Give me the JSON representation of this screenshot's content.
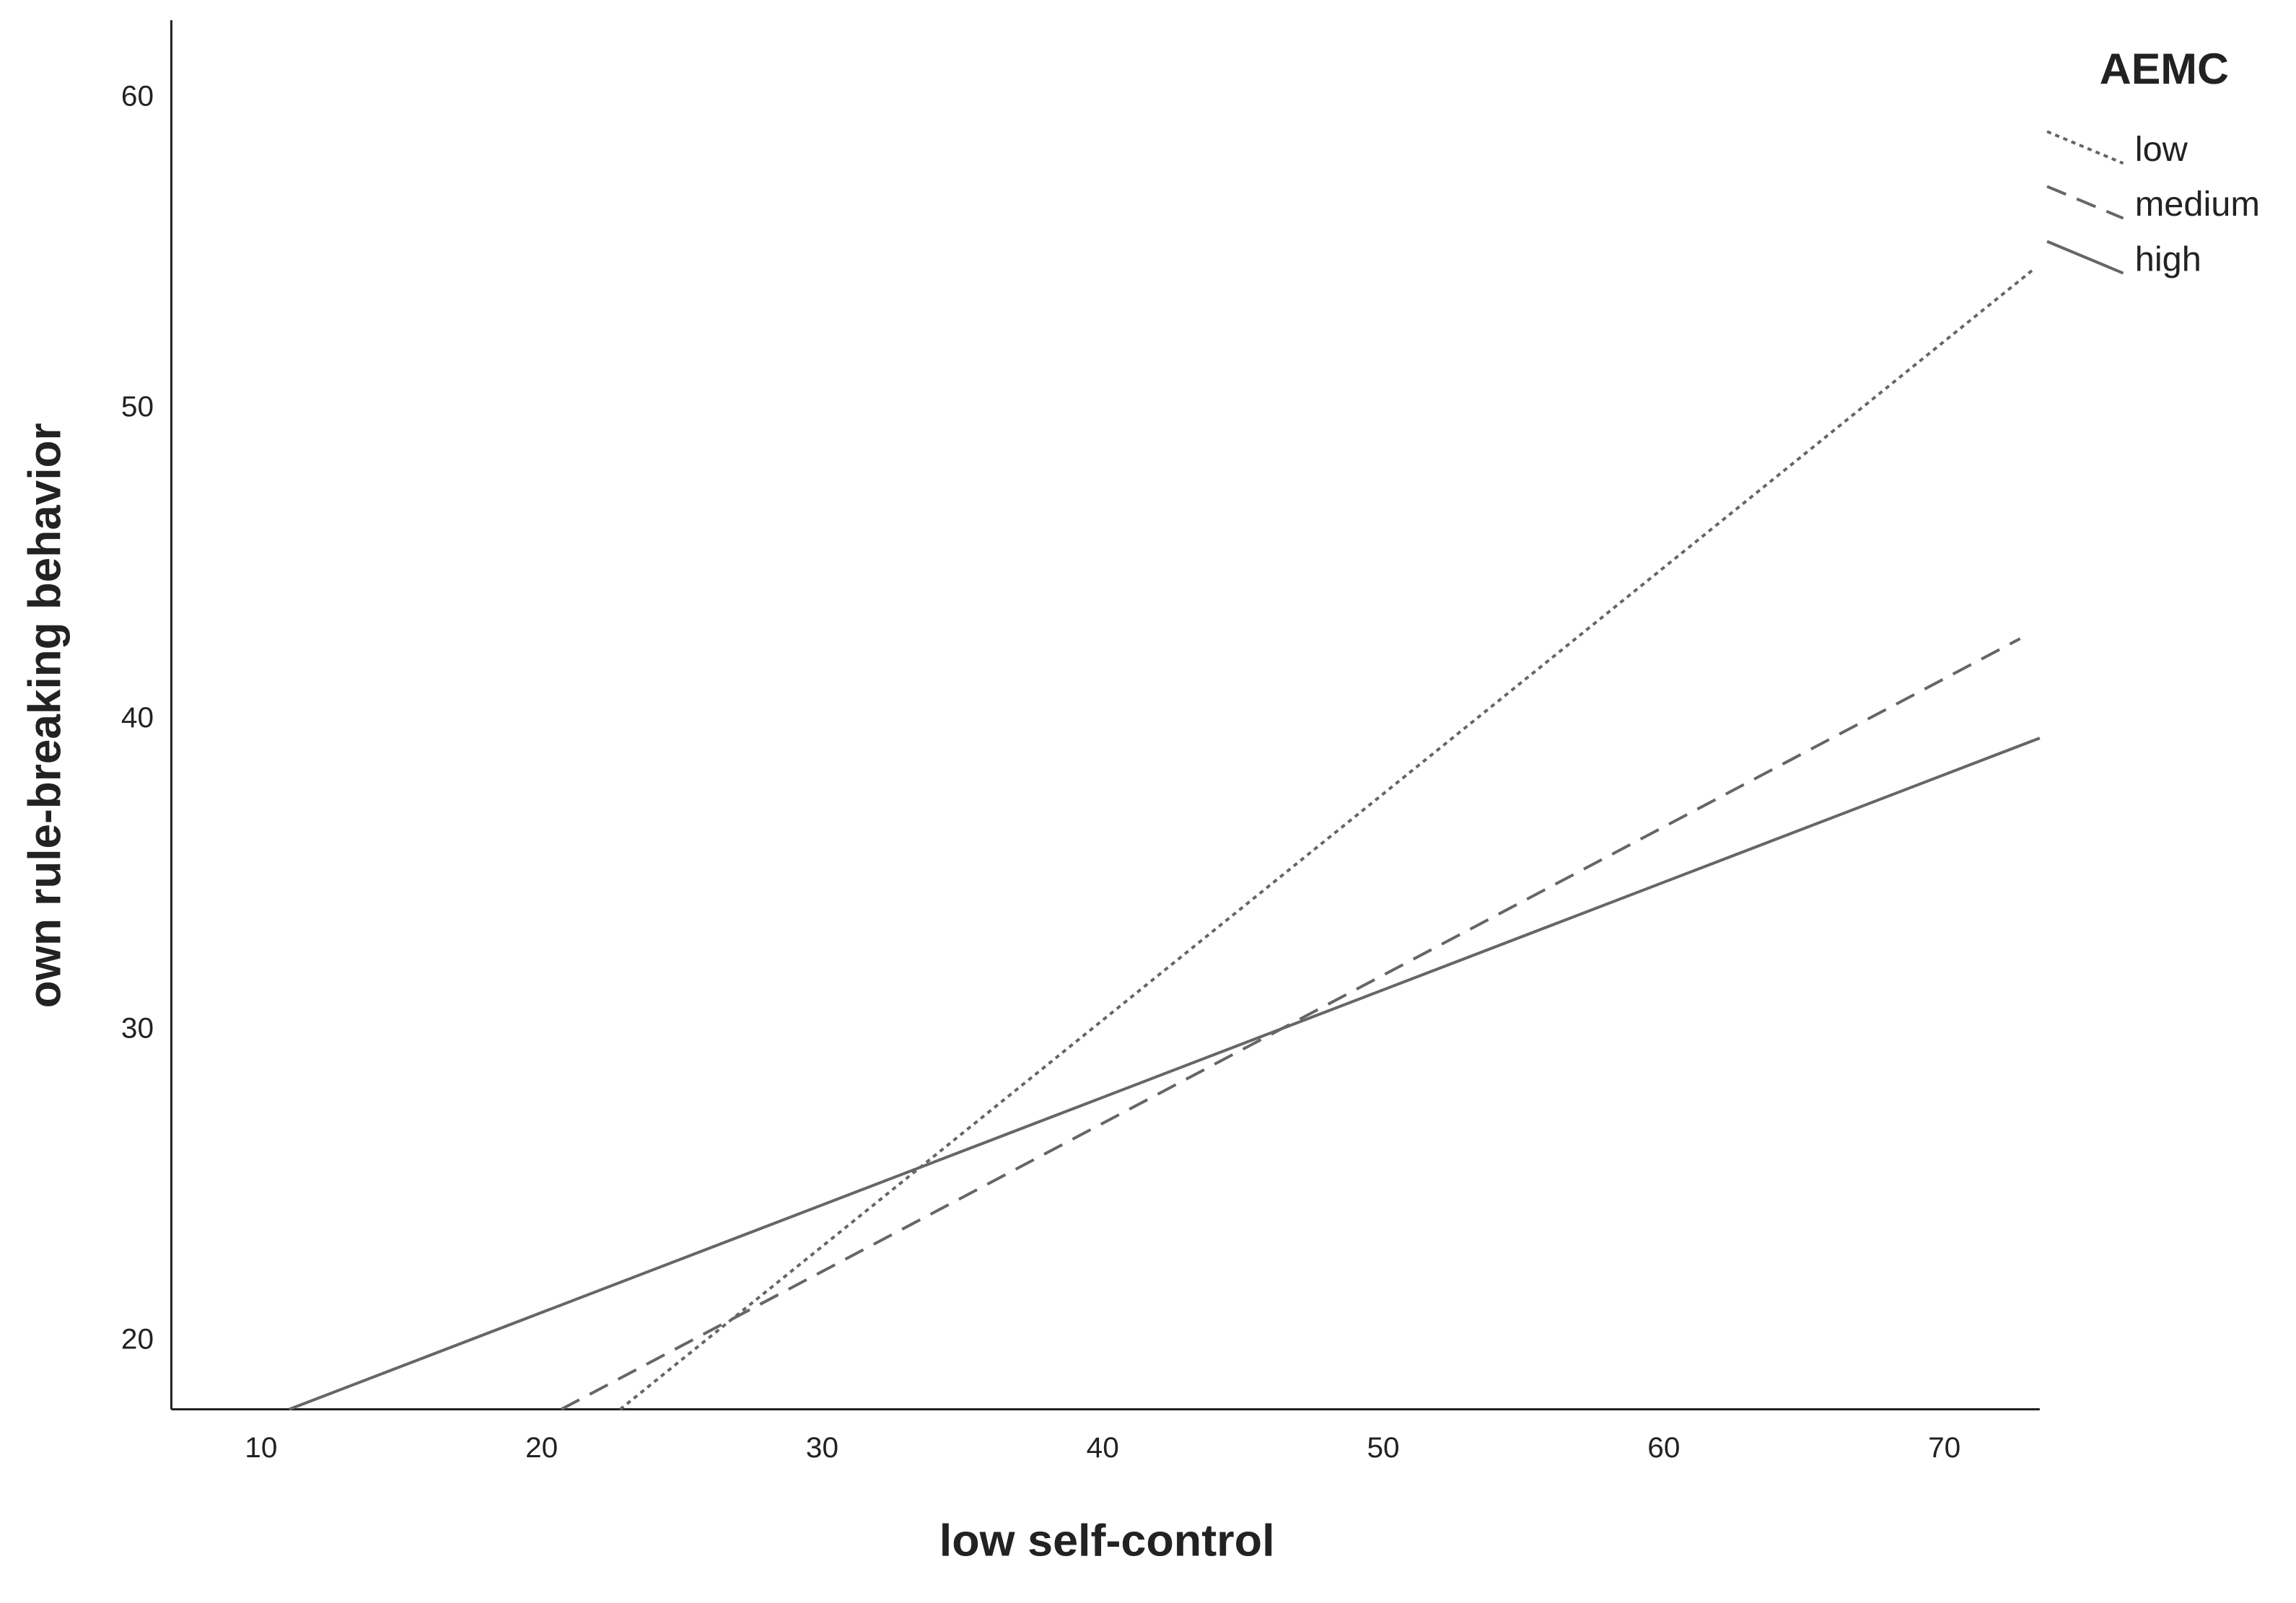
{
  "chart_data": {
    "type": "line",
    "x_label": "low self-control",
    "y_label": "own rule-breaking behavior",
    "legend_title": "AEMC",
    "legend_position": "upper right",
    "grid": false,
    "xlim": [
      6.8,
      73.4
    ],
    "xticks": [
      10,
      20,
      30,
      40,
      50,
      60,
      70
    ],
    "ylim": [
      17.8,
      62.5
    ],
    "yticks": [
      20,
      30,
      40,
      50,
      60
    ],
    "series": [
      {
        "name": "low",
        "color": "#666666",
        "dash": "dotted",
        "x": [
          22.8,
          73.2
        ],
        "values": [
          17.8,
          54.5
        ]
      },
      {
        "name": "medium",
        "color": "#666666",
        "dash": "dashed",
        "x": [
          20.7,
          72.7
        ],
        "values": [
          17.8,
          42.6
        ]
      },
      {
        "name": "high",
        "color": "#666666",
        "dash": "solid",
        "x": [
          11,
          73.4
        ],
        "values": [
          17.8,
          39.4
        ]
      }
    ]
  }
}
